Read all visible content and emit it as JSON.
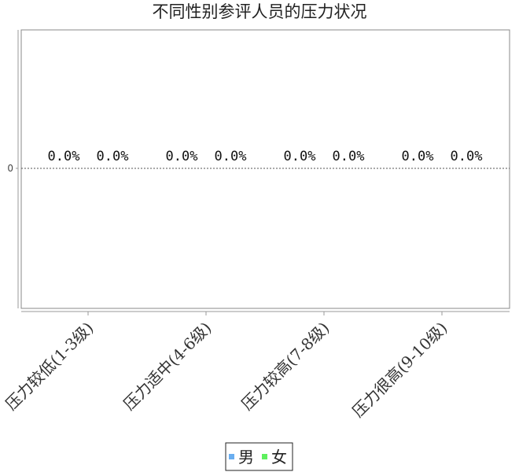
{
  "chart_data": {
    "type": "bar",
    "title": "不同性别参评人员的压力状况",
    "categories": [
      "压力较低(1-3级)",
      "压力适中(4-6级)",
      "压力较高(7-8级)",
      "压力很高(9-10级)"
    ],
    "series": [
      {
        "name": "男",
        "values": [
          0,
          0,
          0,
          0
        ],
        "color": "#6aaef0"
      },
      {
        "name": "女",
        "values": [
          0,
          0,
          0,
          0
        ],
        "color": "#5ef05e"
      }
    ],
    "data_labels": [
      [
        "0.0%",
        "0.0%",
        "0.0%",
        "0.0%"
      ],
      [
        "0.0%",
        "0.0%",
        "0.0%",
        "0.0%"
      ]
    ],
    "y_ticks": [
      "0"
    ],
    "ylim": [
      -1,
      1
    ],
    "xlabel": "",
    "ylabel": "",
    "legend_position": "bottom",
    "grid": false
  }
}
